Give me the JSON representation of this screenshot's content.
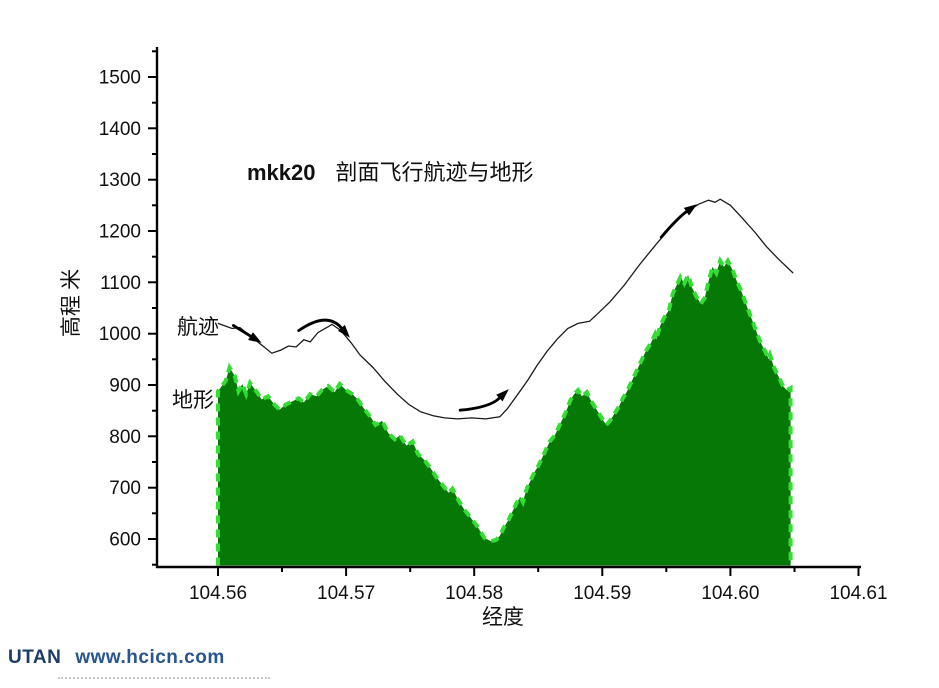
{
  "title": {
    "code": "mkk20",
    "text": "剖面飞行航迹与地形"
  },
  "axes": {
    "x": {
      "label": "经度"
    },
    "y": {
      "label": "高程 米"
    }
  },
  "series_labels": {
    "trajectory": "航迹",
    "terrain": "地形"
  },
  "footer": {
    "brand": "UTAN",
    "url": "www.hcicn.com"
  },
  "colors": {
    "terrain_fill": "#067806",
    "terrain_edge": "#33dd33",
    "trajectory": "#1a1a1a",
    "axis": "#000000",
    "arrow": "#000000"
  },
  "chart_data": {
    "type": "combo",
    "title": "mkk20 剖面飞行航迹与地形",
    "xlabel": "经度",
    "ylabel": "高程 米",
    "xlim": [
      104.5552,
      104.6115
    ],
    "ylim": [
      545,
      1560
    ],
    "grid": false,
    "legend": "inline-labels",
    "x_ticks": [
      {
        "v": 104.56,
        "label": "104.56"
      },
      {
        "v": 104.57,
        "label": "104.57"
      },
      {
        "v": 104.58,
        "label": "104.58"
      },
      {
        "v": 104.59,
        "label": "104.59"
      },
      {
        "v": 104.6,
        "label": "104.60"
      },
      {
        "v": 104.61,
        "label": "104.61"
      }
    ],
    "x_minor": [
      104.565,
      104.575,
      104.585,
      104.595,
      104.605
    ],
    "y_ticks": [
      {
        "v": 600,
        "label": "600"
      },
      {
        "v": 700,
        "label": "700"
      },
      {
        "v": 800,
        "label": "800"
      },
      {
        "v": 900,
        "label": "900"
      },
      {
        "v": 1000,
        "label": "1000"
      },
      {
        "v": 1100,
        "label": "1100"
      },
      {
        "v": 1200,
        "label": "1200"
      },
      {
        "v": 1300,
        "label": "1300"
      },
      {
        "v": 1400,
        "label": "1400"
      },
      {
        "v": 1500,
        "label": "1500"
      }
    ],
    "y_minor": [
      550,
      650,
      750,
      850,
      950,
      1050,
      1150,
      1250,
      1350,
      1450,
      1550
    ],
    "series": [
      {
        "name": "地形",
        "type": "area",
        "points": [
          [
            104.56,
            888
          ],
          [
            104.5603,
            898
          ],
          [
            104.5606,
            908
          ],
          [
            104.5609,
            934
          ],
          [
            104.5613,
            918
          ],
          [
            104.5616,
            888
          ],
          [
            104.5619,
            902
          ],
          [
            104.5622,
            882
          ],
          [
            104.5625,
            904
          ],
          [
            104.5628,
            894
          ],
          [
            104.5631,
            884
          ],
          [
            104.5634,
            872
          ],
          [
            104.5639,
            878
          ],
          [
            104.5644,
            862
          ],
          [
            104.5648,
            852
          ],
          [
            104.5653,
            862
          ],
          [
            104.5658,
            868
          ],
          [
            104.5663,
            874
          ],
          [
            104.5667,
            866
          ],
          [
            104.5672,
            882
          ],
          [
            104.5677,
            878
          ],
          [
            104.5681,
            890
          ],
          [
            104.5686,
            898
          ],
          [
            104.5691,
            886
          ],
          [
            104.5695,
            902
          ],
          [
            104.57,
            890
          ],
          [
            104.5705,
            882
          ],
          [
            104.5709,
            872
          ],
          [
            104.5714,
            854
          ],
          [
            104.5719,
            838
          ],
          [
            104.5723,
            822
          ],
          [
            104.5728,
            830
          ],
          [
            104.5733,
            806
          ],
          [
            104.5738,
            794
          ],
          [
            104.5742,
            802
          ],
          [
            104.5747,
            782
          ],
          [
            104.5752,
            790
          ],
          [
            104.5756,
            766
          ],
          [
            104.5761,
            754
          ],
          [
            104.5766,
            738
          ],
          [
            104.577,
            722
          ],
          [
            104.5775,
            706
          ],
          [
            104.578,
            690
          ],
          [
            104.5783,
            698
          ],
          [
            104.5788,
            674
          ],
          [
            104.5792,
            658
          ],
          [
            104.5797,
            642
          ],
          [
            104.5802,
            626
          ],
          [
            104.5805,
            614
          ],
          [
            104.5808,
            602
          ],
          [
            104.5813,
            596
          ],
          [
            104.5817,
            598
          ],
          [
            104.582,
            606
          ],
          [
            104.5823,
            622
          ],
          [
            104.5827,
            638
          ],
          [
            104.583,
            654
          ],
          [
            104.5833,
            670
          ],
          [
            104.5836,
            682
          ],
          [
            104.5838,
            672
          ],
          [
            104.5841,
            698
          ],
          [
            104.5844,
            714
          ],
          [
            104.5847,
            730
          ],
          [
            104.585,
            742
          ],
          [
            104.5853,
            758
          ],
          [
            104.5856,
            774
          ],
          [
            104.5859,
            790
          ],
          [
            104.5863,
            802
          ],
          [
            104.5866,
            818
          ],
          [
            104.5869,
            834
          ],
          [
            104.5872,
            850
          ],
          [
            104.5875,
            870
          ],
          [
            104.5878,
            882
          ],
          [
            104.5881,
            890
          ],
          [
            104.5884,
            878
          ],
          [
            104.5888,
            886
          ],
          [
            104.5891,
            870
          ],
          [
            104.5894,
            858
          ],
          [
            104.5897,
            846
          ],
          [
            104.59,
            834
          ],
          [
            104.5903,
            822
          ],
          [
            104.5906,
            830
          ],
          [
            104.5909,
            842
          ],
          [
            104.5913,
            858
          ],
          [
            104.5916,
            874
          ],
          [
            104.5919,
            886
          ],
          [
            104.5922,
            902
          ],
          [
            104.5925,
            918
          ],
          [
            104.5928,
            934
          ],
          [
            104.5931,
            950
          ],
          [
            104.5934,
            966
          ],
          [
            104.5938,
            982
          ],
          [
            104.5941,
            998
          ],
          [
            104.5942,
            988
          ],
          [
            104.5945,
            1014
          ],
          [
            104.5948,
            1030
          ],
          [
            104.5952,
            1046
          ],
          [
            104.5955,
            1078
          ],
          [
            104.5958,
            1094
          ],
          [
            104.5961,
            1110
          ],
          [
            104.5964,
            1098
          ],
          [
            104.5967,
            1114
          ],
          [
            104.597,
            1090
          ],
          [
            104.5973,
            1074
          ],
          [
            104.5977,
            1058
          ],
          [
            104.598,
            1070
          ],
          [
            104.5983,
            1102
          ],
          [
            104.5986,
            1130
          ],
          [
            104.5989,
            1118
          ],
          [
            104.5992,
            1142
          ],
          [
            104.5995,
            1130
          ],
          [
            104.5998,
            1142
          ],
          [
            104.6002,
            1122
          ],
          [
            104.6005,
            1102
          ],
          [
            104.6008,
            1086
          ],
          [
            104.6011,
            1066
          ],
          [
            104.6014,
            1046
          ],
          [
            104.6017,
            1026
          ],
          [
            104.602,
            1006
          ],
          [
            104.6023,
            986
          ],
          [
            104.6027,
            966
          ],
          [
            104.603,
            950
          ],
          [
            104.6031,
            958
          ],
          [
            104.6034,
            934
          ],
          [
            104.6038,
            914
          ],
          [
            104.6041,
            898
          ],
          [
            104.6044,
            890
          ],
          [
            104.6047,
            894
          ]
        ]
      },
      {
        "name": "航迹",
        "type": "line",
        "points": [
          [
            104.56,
            1020
          ],
          [
            104.5611,
            1010
          ],
          [
            104.5617,
            1012
          ],
          [
            104.5627,
            992
          ],
          [
            104.5631,
            984
          ],
          [
            104.5636,
            974
          ],
          [
            104.5642,
            962
          ],
          [
            104.5649,
            968
          ],
          [
            104.5655,
            976
          ],
          [
            104.5661,
            974
          ],
          [
            104.5667,
            988
          ],
          [
            104.5672,
            984
          ],
          [
            104.5678,
            1002
          ],
          [
            104.5685,
            1012
          ],
          [
            104.5689,
            1018
          ],
          [
            104.5696,
            1006
          ],
          [
            104.5704,
            982
          ],
          [
            104.5711,
            958
          ],
          [
            104.5721,
            934
          ],
          [
            104.573,
            908
          ],
          [
            104.574,
            882
          ],
          [
            104.5749,
            862
          ],
          [
            104.5758,
            848
          ],
          [
            104.5768,
            840
          ],
          [
            104.5777,
            836
          ],
          [
            104.5787,
            834
          ],
          [
            104.5798,
            836
          ],
          [
            104.5809,
            834
          ],
          [
            104.582,
            838
          ],
          [
            104.5826,
            854
          ],
          [
            104.5834,
            882
          ],
          [
            104.5842,
            910
          ],
          [
            104.5849,
            938
          ],
          [
            104.5857,
            966
          ],
          [
            104.5865,
            990
          ],
          [
            104.5873,
            1010
          ],
          [
            104.5881,
            1020
          ],
          [
            104.589,
            1024
          ],
          [
            104.5896,
            1038
          ],
          [
            104.5906,
            1062
          ],
          [
            104.5917,
            1094
          ],
          [
            104.5929,
            1134
          ],
          [
            104.5942,
            1174
          ],
          [
            104.5953,
            1206
          ],
          [
            104.5964,
            1234
          ],
          [
            104.5975,
            1252
          ],
          [
            104.5983,
            1260
          ],
          [
            104.5988,
            1256
          ],
          [
            104.5992,
            1262
          ],
          [
            104.6,
            1250
          ],
          [
            104.6009,
            1226
          ],
          [
            104.6019,
            1198
          ],
          [
            104.6028,
            1170
          ],
          [
            104.6038,
            1144
          ],
          [
            104.6049,
            1118
          ]
        ]
      }
    ],
    "annotations": {
      "arrows": [
        {
          "start": [
            104.5612,
            1016
          ],
          "ctrl": [
            104.5621,
            1002
          ],
          "tip": [
            104.5634,
            982
          ]
        },
        {
          "start": [
            104.5663,
            1006
          ],
          "ctrl": [
            104.5685,
            1044
          ],
          "tip": [
            104.5703,
            992
          ]
        },
        {
          "start": [
            104.5789,
            851
          ],
          "ctrl": [
            104.5812,
            856
          ],
          "tip": [
            104.5827,
            892
          ]
        },
        {
          "start": [
            104.5946,
            1188
          ],
          "ctrl": [
            104.5959,
            1226
          ],
          "tip": [
            104.5974,
            1252
          ]
        }
      ]
    }
  }
}
